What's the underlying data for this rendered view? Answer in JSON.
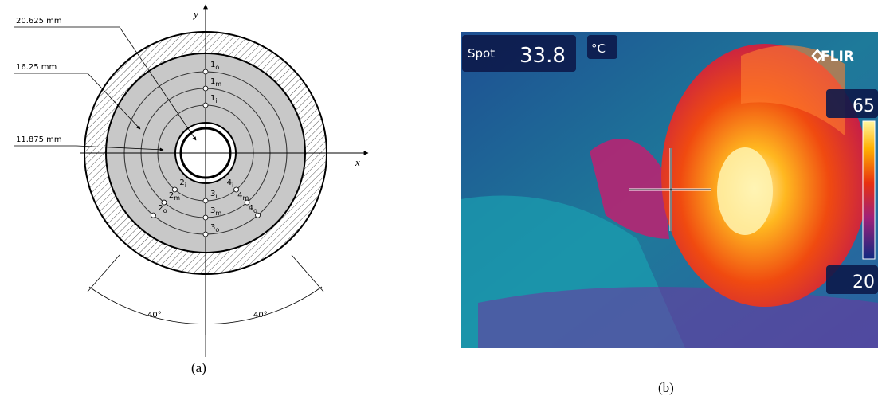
{
  "diagram_a": {
    "axis_y": "y",
    "axis_x": "x",
    "dimensions": [
      "20.625 mm",
      "16.25 mm",
      "11.875 mm"
    ],
    "points": [
      {
        "number": "1",
        "sub": "o"
      },
      {
        "number": "1",
        "sub": "m"
      },
      {
        "number": "1",
        "sub": "i"
      },
      {
        "number": "2",
        "sub": "i"
      },
      {
        "number": "2",
        "sub": "m"
      },
      {
        "number": "2",
        "sub": "o"
      },
      {
        "number": "3",
        "sub": "i"
      },
      {
        "number": "3",
        "sub": "m"
      },
      {
        "number": "3",
        "sub": "o"
      },
      {
        "number": "4",
        "sub": "i"
      },
      {
        "number": "4",
        "sub": "m"
      },
      {
        "number": "4",
        "sub": "o"
      }
    ],
    "angles": [
      "40°",
      "40°"
    ],
    "caption": "(a)"
  },
  "thermal_b": {
    "spot_label": "Spot",
    "spot_value": 33.8,
    "unit": "°C",
    "brand": "FLIR",
    "scale_max": 65,
    "scale_min": 20,
    "caption": "(b)"
  }
}
